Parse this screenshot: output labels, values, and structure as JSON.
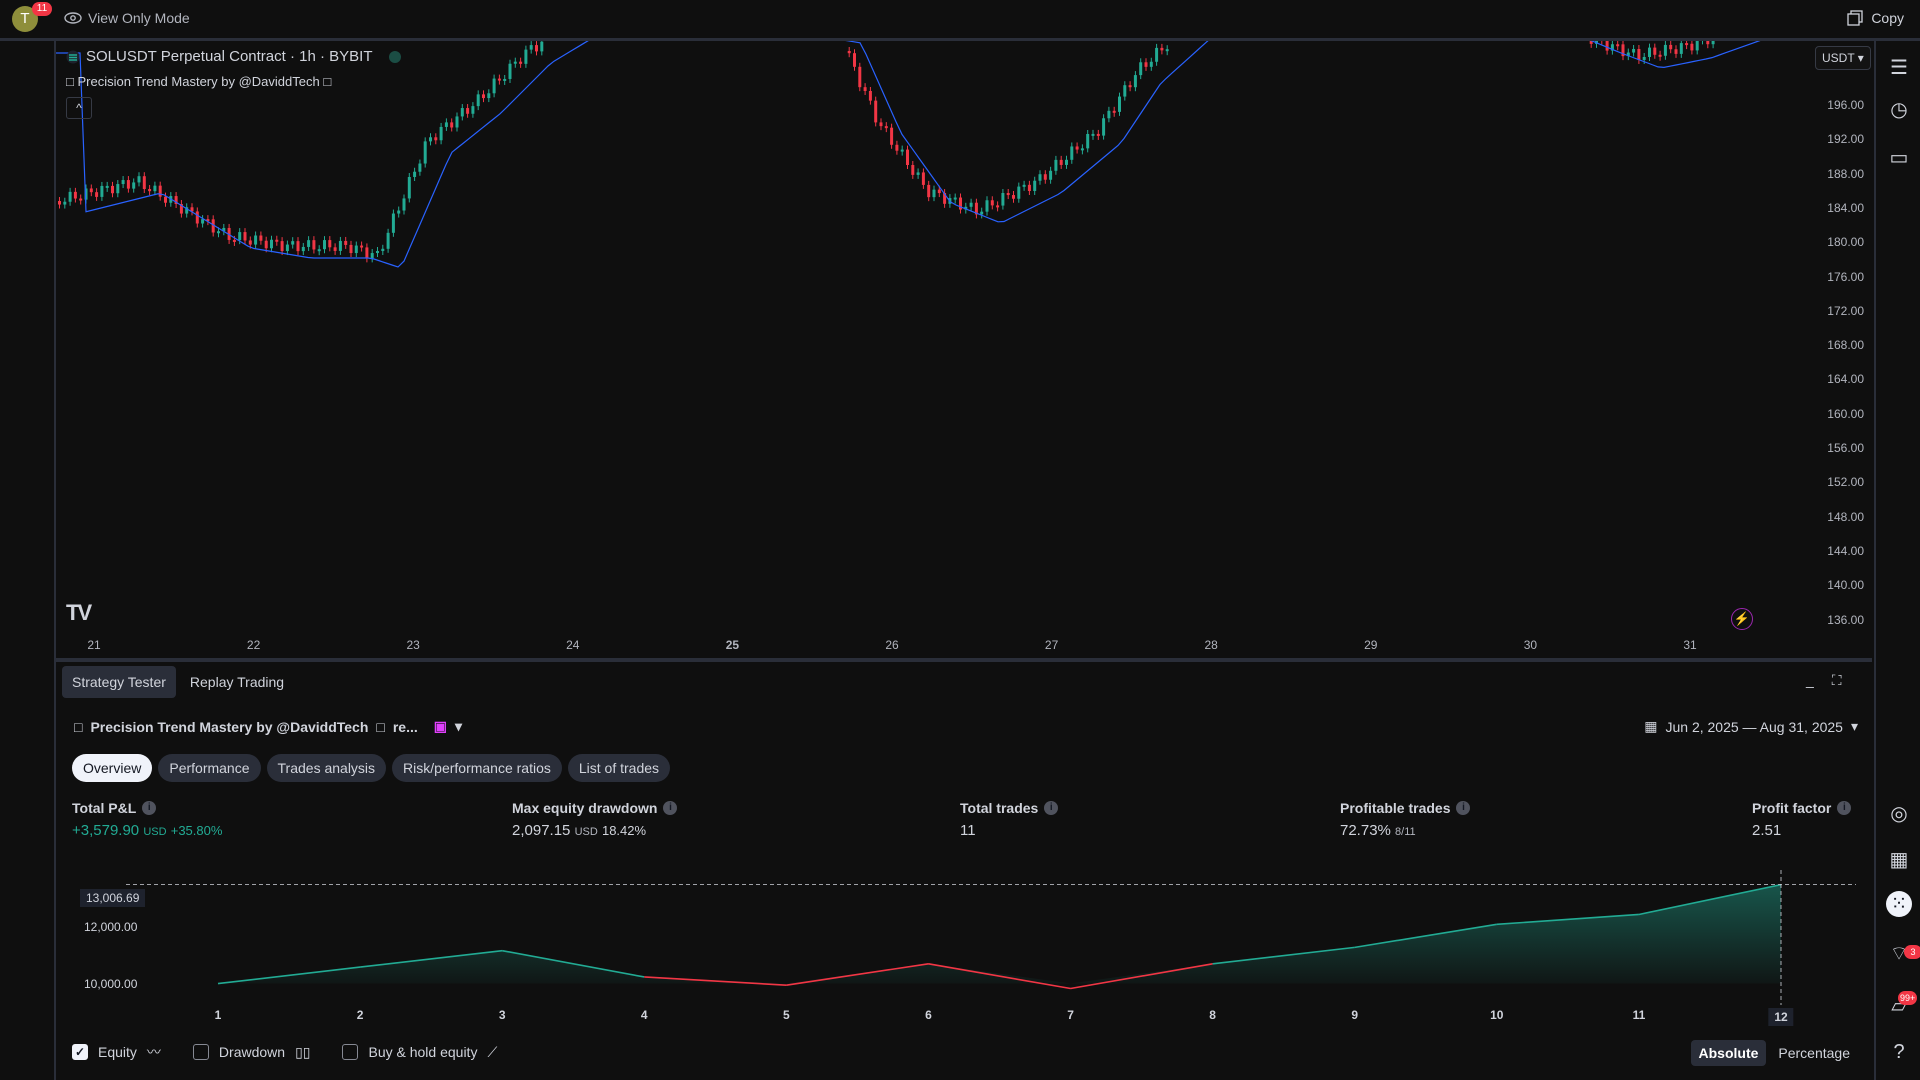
{
  "topbar": {
    "avatar_letter": "T",
    "avatar_badge": "11",
    "view_only_label": "View Only Mode",
    "copy_label": "Copy"
  },
  "chart": {
    "symbol_title": "SOLUSDT Perpetual Contract · 1h · BYBIT",
    "indicator_label": "Precision Trend Mastery by @DaviddTech",
    "collapse_glyph": "^",
    "currency": "USDT",
    "logo_text": "TV",
    "price_ticks": [
      "196.00",
      "192.00",
      "188.00",
      "184.00",
      "180.00",
      "176.00",
      "172.00",
      "168.00",
      "164.00",
      "160.00",
      "156.00",
      "152.00",
      "148.00",
      "144.00",
      "140.00",
      "136.00"
    ],
    "time_ticks": [
      "21",
      "22",
      "23",
      "24",
      "25",
      "26",
      "27",
      "28",
      "29",
      "30",
      "31"
    ],
    "up_color": "#22ab94",
    "down_color": "#f23645",
    "ma_color": "#2962ff"
  },
  "bottom_tabs": [
    "Strategy Tester",
    "Replay Trading"
  ],
  "strategy": {
    "title": "Precision Trend Mastery by @DaviddTech",
    "title_suffix": "re...",
    "date_range": "Jun 2, 2025 — Aug 31, 2025",
    "subtabs": [
      "Overview",
      "Performance",
      "Trades analysis",
      "Risk/performance ratios",
      "List of trades"
    ]
  },
  "metrics": {
    "total_pnl_label": "Total P&L",
    "total_pnl_value": "+3,579.90",
    "total_pnl_unit": "USD",
    "total_pnl_pct": "+35.80%",
    "max_dd_label": "Max equity drawdown",
    "max_dd_value": "2,097.15",
    "max_dd_unit": "USD",
    "max_dd_pct": "18.42%",
    "total_trades_label": "Total trades",
    "total_trades_value": "11",
    "profitable_label": "Profitable trades",
    "profitable_value": "72.73%",
    "profitable_ratio": "8/11",
    "profit_factor_label": "Profit factor",
    "profit_factor_value": "2.51"
  },
  "chart_data": {
    "type": "area",
    "x": [
      1,
      2,
      3,
      4,
      5,
      6,
      7,
      8,
      9,
      10,
      11,
      12
    ],
    "series": [
      {
        "values": [
          10000,
          10500,
          11000,
          10200,
          9950,
          10600,
          9850,
          10600,
          11100,
          11800,
          12100,
          13006.69
        ]
      }
    ],
    "y_ticks": [
      "12,000.00",
      "10,000.00"
    ],
    "current_marker": "13,006.69",
    "x_highlight": "12",
    "ylim": [
      9500,
      13300
    ]
  },
  "toggles": {
    "equity_label": "Equity",
    "drawdown_label": "Drawdown",
    "buyhold_label": "Buy & hold equity",
    "absolute_label": "Absolute",
    "percentage_label": "Percentage"
  },
  "right_toolbar": {
    "notif_badge_1": "3",
    "notif_badge_2": "99+"
  }
}
